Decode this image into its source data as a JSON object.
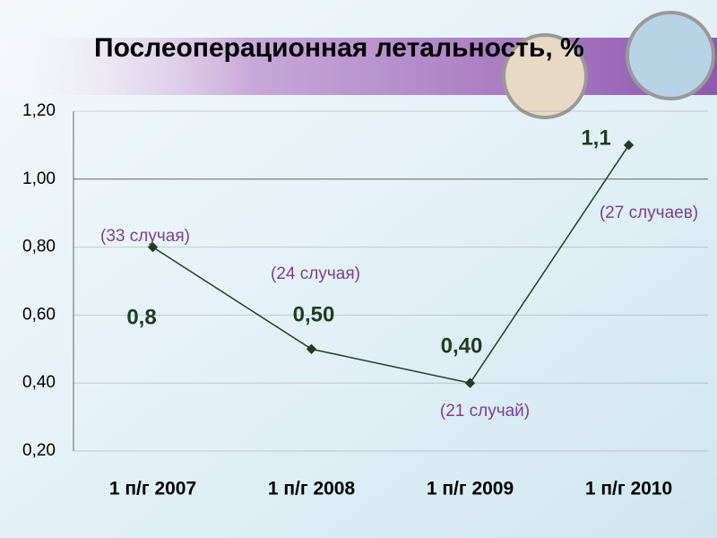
{
  "chart_data": {
    "type": "line",
    "title": "Послеоперационная летальность, %",
    "categories": [
      "1 п/г 2007",
      "1 п/г 2008",
      "1 п/г 2009",
      "1 п/г 2010"
    ],
    "values": [
      0.8,
      0.5,
      0.4,
      1.1
    ],
    "value_labels": [
      "0,8",
      "0,50",
      "0,40",
      "1,1"
    ],
    "annotations": [
      "(33 случая)",
      "(24 случая)",
      "(21 случай)",
      "(27 случаев)"
    ],
    "color": "#1f3d1f",
    "ylim": [
      0.2,
      1.2
    ],
    "yticks": [
      {
        "value": 0.2,
        "label": "0,20"
      },
      {
        "value": 0.4,
        "label": "0,40"
      },
      {
        "value": 0.6,
        "label": "0,60"
      },
      {
        "value": 0.8,
        "label": "0,80"
      },
      {
        "value": 1.0,
        "label": "1,00"
      },
      {
        "value": 1.2,
        "label": "1,20"
      }
    ],
    "grid": true
  }
}
